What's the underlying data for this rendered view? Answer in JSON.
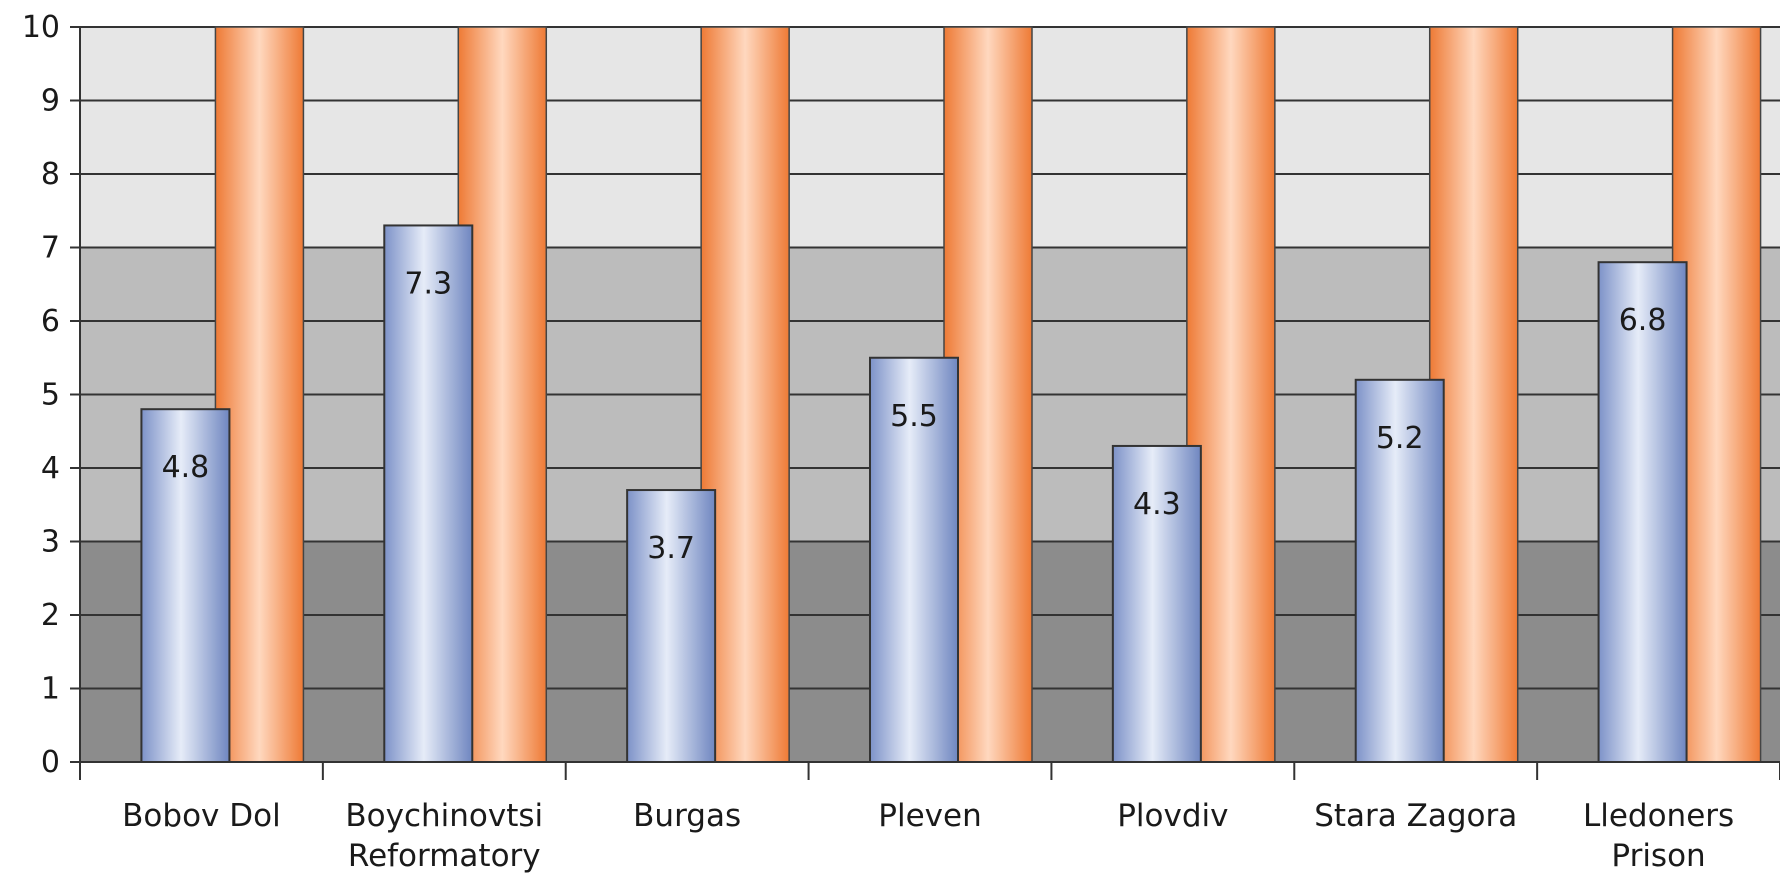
{
  "chart_data": {
    "type": "bar",
    "categories": [
      [
        "Bobov Dol"
      ],
      [
        "Boychinovtsi",
        "Reformatory"
      ],
      [
        "Burgas"
      ],
      [
        "Pleven"
      ],
      [
        "Plovdiv"
      ],
      [
        "Stara Zagora"
      ],
      [
        "Lledoners",
        "Prison"
      ]
    ],
    "series": [
      {
        "values": [
          4.8,
          7.3,
          3.7,
          5.5,
          4.3,
          5.2,
          6.8
        ],
        "color": "#8fa6d6",
        "data_labels": [
          "4.8",
          "7.3",
          "3.7",
          "5.5",
          "4.3",
          "5.2",
          "6.8"
        ]
      },
      {
        "values": [
          10,
          10,
          10,
          10,
          10,
          10,
          10
        ],
        "color": "#f28c4a"
      }
    ],
    "ylim": [
      0,
      10
    ],
    "yticks": [
      "0",
      "1",
      "2",
      "3",
      "4",
      "5",
      "6",
      "7",
      "8",
      "9",
      "10"
    ],
    "bands": [
      {
        "from": 0,
        "to": 3,
        "color": "#8c8c8c"
      },
      {
        "from": 3,
        "to": 7,
        "color": "#bcbcbc"
      },
      {
        "from": 7,
        "to": 10,
        "color": "#e6e6e6"
      }
    ],
    "grid": true,
    "title": "",
    "xlabel": "",
    "ylabel": ""
  }
}
